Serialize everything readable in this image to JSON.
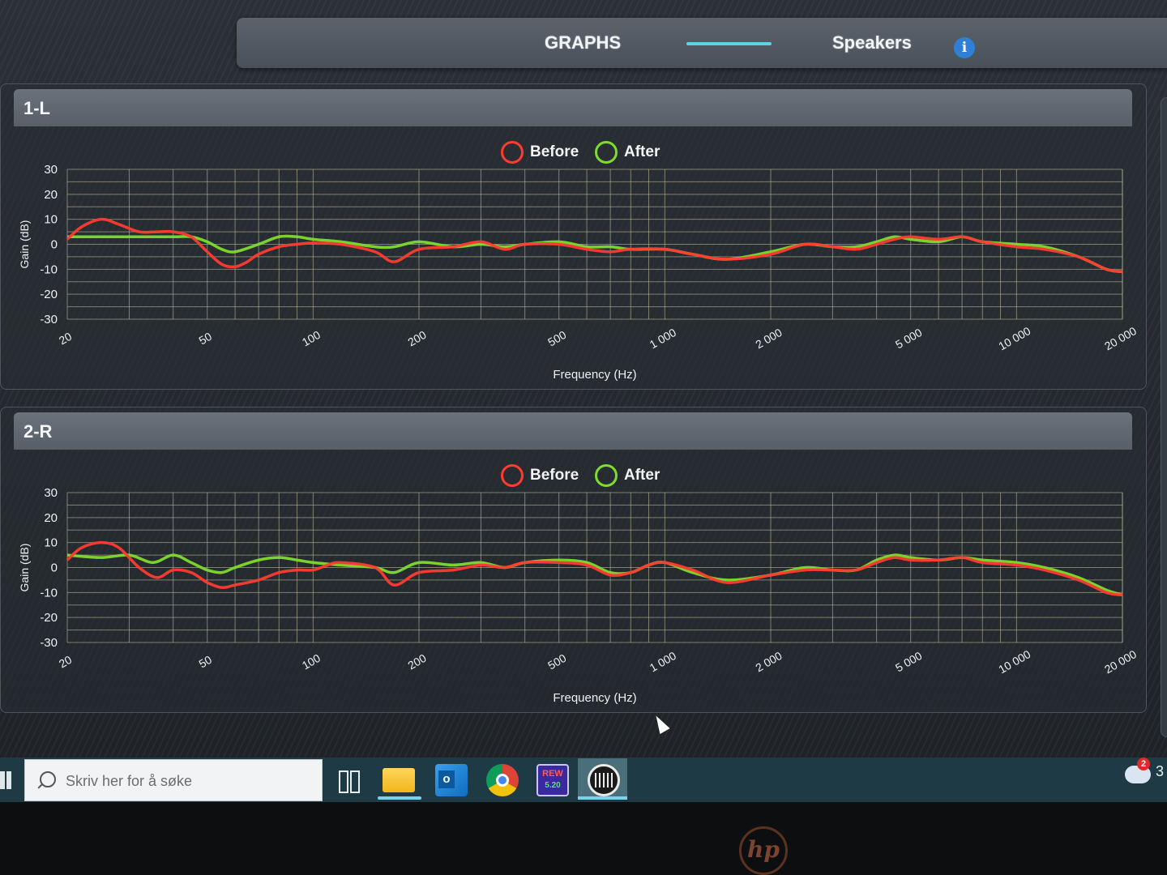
{
  "nav": {
    "tab_graphs": "GRAPHS",
    "tab_speakers": "Speakers",
    "info_icon": "i"
  },
  "colors": {
    "before": "#ff3b30",
    "after": "#7ddc2c",
    "accent": "#5ed3e6",
    "grid": "#c8c4a0"
  },
  "panels": [
    {
      "title": "1-L",
      "legend_before": "Before",
      "legend_after": "After"
    },
    {
      "title": "2-R",
      "legend_before": "Before",
      "legend_after": "After"
    }
  ],
  "chart_data": [
    {
      "type": "line",
      "title": "1-L",
      "xlabel": "Frequency (Hz)",
      "ylabel": "Gain (dB)",
      "x_scale": "log",
      "xlim": [
        20,
        20000
      ],
      "ylim": [
        -30,
        30
      ],
      "x_ticks": [
        20,
        50,
        100,
        200,
        500,
        1000,
        2000,
        5000,
        10000,
        20000
      ],
      "x_tick_labels": [
        "20",
        "50",
        "100",
        "200",
        "500",
        "1 000",
        "2 000",
        "5 000",
        "10 000",
        "20 000"
      ],
      "y_ticks": [
        30,
        20,
        10,
        0,
        -10,
        -20,
        -30
      ],
      "grid": true,
      "legend": "top-center",
      "series": [
        {
          "name": "Before",
          "color": "#ff3b30",
          "x": [
            20,
            22,
            25,
            28,
            32,
            36,
            40,
            45,
            50,
            55,
            60,
            65,
            70,
            80,
            90,
            100,
            120,
            150,
            170,
            200,
            250,
            300,
            350,
            400,
            500,
            600,
            700,
            800,
            1000,
            1200,
            1500,
            2000,
            2500,
            3000,
            3500,
            4000,
            4500,
            5000,
            6000,
            7000,
            8000,
            10000,
            12000,
            15000,
            18000,
            20000
          ],
          "y": [
            2,
            7,
            10,
            8,
            5,
            5,
            5,
            3,
            -3,
            -8,
            -9,
            -7,
            -4,
            -1,
            0,
            0.5,
            0,
            -3,
            -7,
            -2,
            -1,
            1,
            -2,
            0,
            0,
            -2,
            -3,
            -2,
            -2,
            -4,
            -6,
            -4,
            0,
            -1,
            -2,
            0,
            2,
            3,
            2,
            3,
            1,
            -1,
            -2,
            -5,
            -10,
            -11
          ]
        },
        {
          "name": "After",
          "color": "#7ddc2c",
          "x": [
            20,
            25,
            30,
            40,
            45,
            50,
            55,
            60,
            70,
            80,
            90,
            100,
            120,
            150,
            170,
            200,
            250,
            300,
            350,
            400,
            500,
            600,
            700,
            800,
            1000,
            1200,
            1500,
            2000,
            2500,
            3000,
            3500,
            4000,
            4500,
            5000,
            6000,
            7000,
            8000,
            10000,
            12000,
            15000,
            18000,
            20000
          ],
          "y": [
            3,
            3,
            3,
            3,
            3,
            1,
            -2,
            -3,
            0,
            3,
            3,
            2,
            1,
            -1,
            -1,
            1,
            -1,
            0,
            -1,
            0,
            1,
            -1,
            -1,
            -2,
            -2,
            -4,
            -6,
            -3,
            0,
            -1,
            -1,
            1,
            3,
            2,
            1,
            3,
            1,
            0,
            -1,
            -5,
            -10,
            -11
          ]
        }
      ]
    },
    {
      "type": "line",
      "title": "2-R",
      "xlabel": "Frequency (Hz)",
      "ylabel": "Gain (dB)",
      "x_scale": "log",
      "xlim": [
        20,
        20000
      ],
      "ylim": [
        -30,
        30
      ],
      "x_ticks": [
        20,
        50,
        100,
        200,
        500,
        1000,
        2000,
        5000,
        10000,
        20000
      ],
      "x_tick_labels": [
        "20",
        "50",
        "100",
        "200",
        "500",
        "1 000",
        "2 000",
        "5 000",
        "10 000",
        "20 000"
      ],
      "y_ticks": [
        30,
        20,
        10,
        0,
        -10,
        -20,
        -30
      ],
      "grid": true,
      "legend": "top-center",
      "series": [
        {
          "name": "Before",
          "color": "#ff3b30",
          "x": [
            20,
            22,
            25,
            28,
            32,
            36,
            40,
            45,
            50,
            55,
            60,
            70,
            80,
            90,
            100,
            110,
            120,
            150,
            170,
            200,
            250,
            300,
            350,
            400,
            500,
            600,
            700,
            800,
            900,
            1000,
            1200,
            1500,
            2000,
            2500,
            3000,
            3500,
            4000,
            4500,
            5000,
            6000,
            7000,
            8000,
            10000,
            12000,
            15000,
            18000,
            20000
          ],
          "y": [
            3,
            8,
            10,
            8,
            0,
            -4,
            -1,
            -2,
            -6,
            -8,
            -7,
            -5,
            -2,
            -1,
            -1,
            1,
            2,
            0,
            -7,
            -2,
            -1,
            1,
            0,
            2,
            2,
            1,
            -3,
            -2,
            1,
            2,
            -1,
            -6,
            -3,
            -1,
            -1,
            -1,
            2,
            4,
            3,
            3,
            4,
            2,
            1,
            -1,
            -5,
            -10,
            -11
          ]
        },
        {
          "name": "After",
          "color": "#7ddc2c",
          "x": [
            20,
            25,
            30,
            35,
            40,
            45,
            50,
            55,
            60,
            70,
            80,
            90,
            100,
            120,
            150,
            170,
            200,
            250,
            300,
            350,
            400,
            500,
            600,
            700,
            800,
            900,
            1000,
            1200,
            1500,
            2000,
            2500,
            3000,
            3500,
            4000,
            4500,
            5000,
            6000,
            7000,
            8000,
            10000,
            12000,
            15000,
            18000,
            20000
          ],
          "y": [
            5,
            4,
            5,
            2,
            5,
            2,
            -1,
            -2,
            0,
            3,
            4,
            3,
            2,
            1,
            0,
            -2,
            2,
            1,
            2,
            0,
            2,
            3,
            2,
            -2,
            -2,
            1,
            2,
            -2,
            -5,
            -3,
            0,
            -1,
            -1,
            3,
            5,
            4,
            3,
            4,
            3,
            2,
            0,
            -4,
            -9,
            -11
          ]
        }
      ]
    }
  ],
  "taskbar": {
    "search_placeholder": "Skriv her for å søke",
    "rew_label": "REW",
    "rew_sub": "5.20",
    "notification_count": "2",
    "tray_text": "3"
  }
}
